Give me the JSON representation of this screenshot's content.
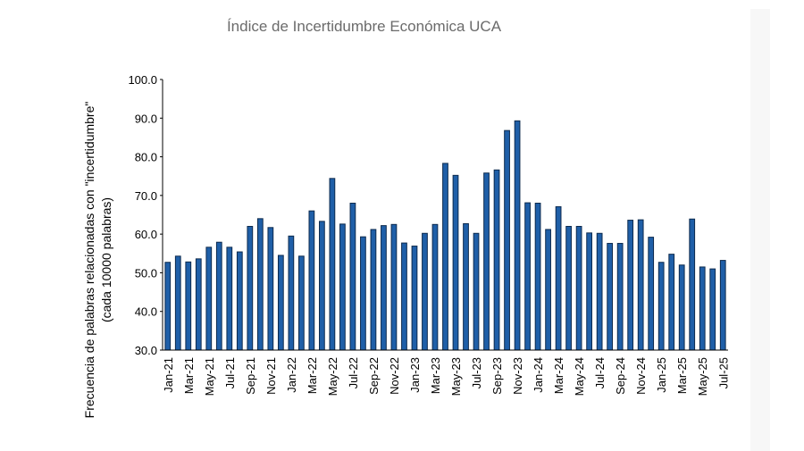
{
  "chart_data": {
    "type": "bar",
    "title": "Índice de Incertidumbre Económica UCA",
    "ylabel_line1": "Frecuencia de palabras relacionadas con \"incertidumbre\"",
    "ylabel_line2": "(cada 10000 palabras)",
    "xlabel": "",
    "ylim": [
      30,
      100
    ],
    "ytick_values": [
      30,
      40,
      50,
      60,
      70,
      80,
      90,
      100
    ],
    "ytick_labels": [
      "30.0",
      "40.0",
      "50.0",
      "60.0",
      "70.0",
      "80.0",
      "90.0",
      "100.0"
    ],
    "categories": [
      "Jan-21",
      "Feb-21",
      "Mar-21",
      "Apr-21",
      "May-21",
      "Jun-21",
      "Jul-21",
      "Aug-21",
      "Sep-21",
      "Oct-21",
      "Nov-21",
      "Dec-21",
      "Jan-22",
      "Feb-22",
      "Mar-22",
      "Apr-22",
      "May-22",
      "Jun-22",
      "Jul-22",
      "Aug-22",
      "Sep-22",
      "Oct-22",
      "Nov-22",
      "Dec-22",
      "Jan-23",
      "Feb-23",
      "Mar-23",
      "Apr-23",
      "May-23",
      "Jun-23",
      "Jul-23",
      "Aug-23",
      "Sep-23",
      "Oct-23",
      "Nov-23",
      "Dec-23",
      "Jan-24",
      "Feb-24",
      "Mar-24",
      "Apr-24",
      "May-24",
      "Jun-24",
      "Jul-24",
      "Aug-24",
      "Sep-24",
      "Oct-24",
      "Nov-24",
      "Dec-24",
      "Jan-25",
      "Feb-25",
      "Mar-25",
      "Apr-25",
      "May-25",
      "Jun-25",
      "Jul-25"
    ],
    "visible_tick_labels": [
      "Jan-21",
      "Mar-21",
      "May-21",
      "Jul-21",
      "Sep-21",
      "Nov-21",
      "Jan-22",
      "Mar-22",
      "May-22",
      "Jul-22",
      "Sep-22",
      "Nov-22",
      "Jan-23",
      "Mar-23",
      "May-23",
      "Jul-23",
      "Sep-23",
      "Nov-23",
      "Jan-24",
      "Mar-24",
      "May-24",
      "Jul-24",
      "Sep-24",
      "Nov-24",
      "Jan-25",
      "Mar-25",
      "May-25",
      "Jul-25"
    ],
    "values": [
      52.7,
      54.3,
      52.8,
      53.6,
      56.6,
      57.9,
      56.6,
      55.4,
      62.0,
      64.0,
      61.7,
      54.5,
      59.5,
      54.3,
      66.0,
      63.3,
      74.4,
      62.6,
      68.0,
      59.3,
      61.2,
      62.2,
      62.5,
      57.7,
      56.9,
      60.2,
      62.5,
      78.3,
      75.2,
      62.7,
      60.2,
      75.8,
      76.6,
      86.8,
      89.3,
      68.1,
      68.0,
      61.2,
      67.1,
      62.0,
      62.0,
      60.3,
      60.2,
      57.6,
      57.6,
      63.6,
      63.7,
      59.2,
      52.7,
      54.8,
      52.0,
      63.9,
      51.5,
      51.0,
      53.2
    ],
    "color": "#1f5fa8",
    "grid": false
  }
}
